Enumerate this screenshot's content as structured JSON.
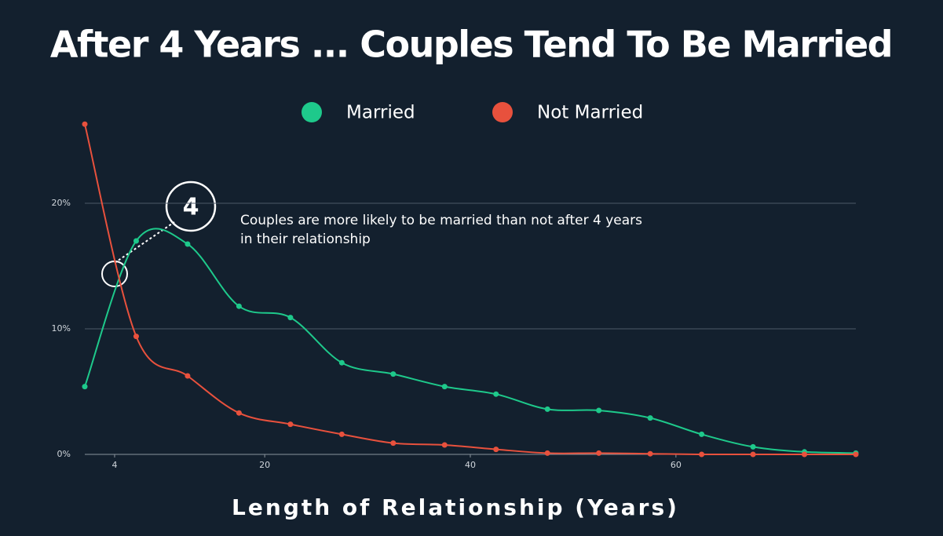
{
  "chart_data": {
    "type": "line",
    "title": "After 4 Years ... Couples Tend To Be Married",
    "x_label": "Length of Relationship (Years)",
    "x": [
      2.5,
      7.5,
      12.5,
      17.5,
      22.5,
      27.5,
      32.5,
      37.5,
      42.5,
      47.5,
      52.5,
      57.5,
      62.5,
      67.5,
      72.5,
      77.5
    ],
    "series": [
      {
        "name": "Married",
        "color": "#1ec98b",
        "values": [
          5.4,
          17.0,
          16.75,
          11.8,
          10.9,
          7.3,
          6.4,
          5.4,
          4.8,
          3.6,
          3.5,
          2.9,
          1.6,
          0.6,
          0.2,
          0.1
        ]
      },
      {
        "name": "Not Married",
        "color": "#e8513d",
        "values": [
          26.3,
          9.4,
          6.25,
          3.3,
          2.4,
          1.6,
          0.9,
          0.75,
          0.4,
          0.1,
          0.1,
          0.05,
          0,
          0,
          0,
          0
        ]
      }
    ],
    "xlim": [
      2.5,
      77.5
    ],
    "xticks": [
      {
        "value": 5.4,
        "label": "4"
      },
      20,
      40,
      60
    ],
    "ylim": [
      0,
      20
    ],
    "yticks": [
      {
        "value": 0,
        "label": "0%"
      },
      {
        "value": 10,
        "label": "10%"
      },
      {
        "value": 20,
        "label": "20%"
      }
    ],
    "grid": true,
    "annotation": {
      "badge": "4",
      "lines": [
        "Couples are more likely to be married than not after 4 years",
        "in their relationship"
      ]
    }
  }
}
